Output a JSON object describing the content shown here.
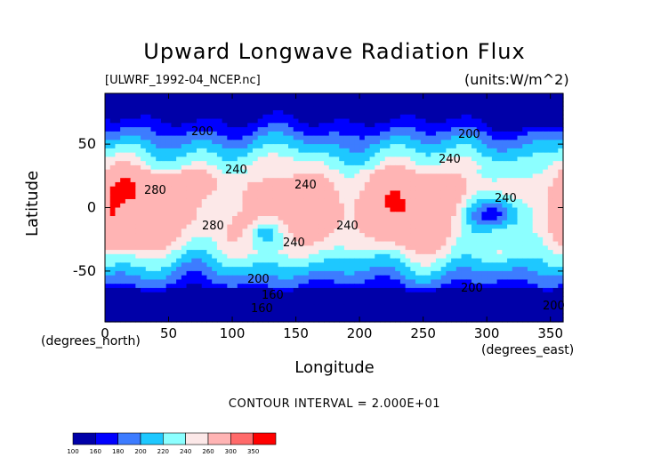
{
  "chart_data": {
    "type": "heatmap",
    "title": "Upward Longwave Radiation Flux",
    "subtitle_left": "[ULWRF_1992-04_NCEP.nc]",
    "subtitle_right": "(units:W/m^2)",
    "xlabel": "Longitude",
    "ylabel": "Latitude",
    "x_unit_label": "(degrees_east)",
    "y_unit_label": "(degrees_north)",
    "xlim": [
      0,
      360
    ],
    "ylim": [
      -90,
      90
    ],
    "x_ticks": [
      "0",
      "50",
      "100",
      "150",
      "200",
      "250",
      "300",
      "350"
    ],
    "y_ticks": [
      "50",
      "0",
      "-50"
    ],
    "contour_interval_text": "CONTOUR INTERVAL = 2.000E+01",
    "contour_labels": [
      "200",
      "240",
      "280",
      "240",
      "280",
      "240",
      "240",
      "240",
      "200",
      "200",
      "160",
      "160",
      "200",
      "240",
      "200"
    ],
    "colorbar": {
      "levels": [
        "100",
        "160",
        "180",
        "200",
        "220",
        "240",
        "260",
        "300",
        "350"
      ],
      "colors": [
        "#0000a8",
        "#0000ff",
        "#3d7cff",
        "#1ec8ff",
        "#8cffff",
        "#fce8e8",
        "#ffb4b4",
        "#ff6a6a",
        "#ff0000"
      ]
    }
  }
}
